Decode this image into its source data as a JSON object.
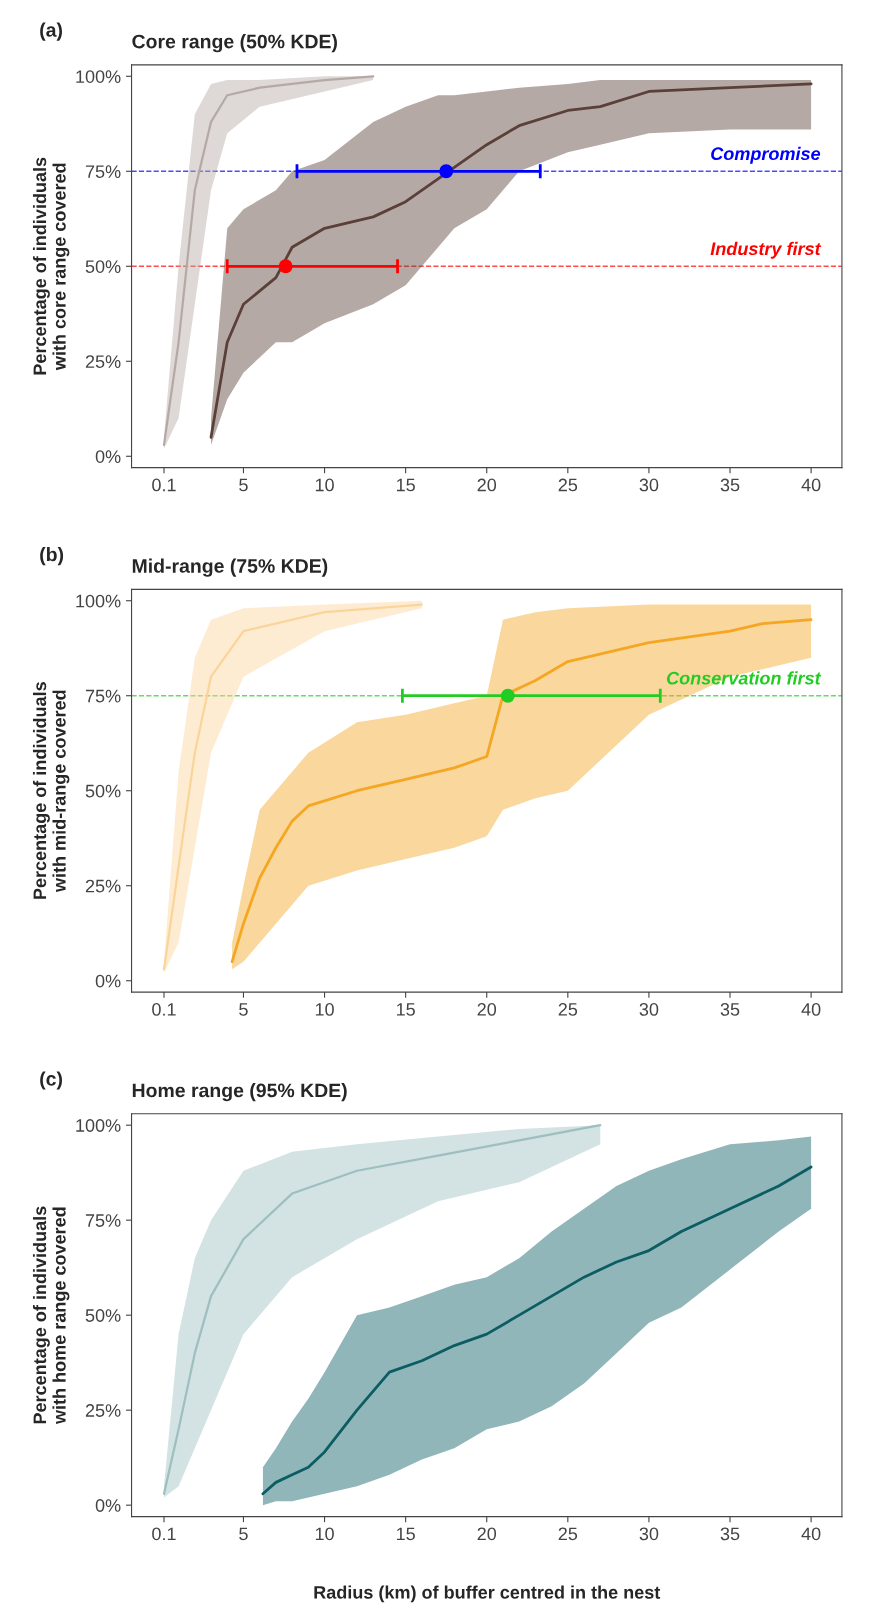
{
  "chart_data": [
    {
      "type": "line",
      "title": "Core range (50% KDE)",
      "annotations": [
        "(a)"
      ],
      "ylabel": "Percentage of individuals\nwith core range covered",
      "xlim": [
        -1.9,
        41.9
      ],
      "xticks": [
        0.1,
        5,
        10,
        15,
        20,
        25,
        30,
        35,
        40
      ],
      "ylim": [
        -3,
        103
      ],
      "yticks": [
        {
          "value": 0,
          "label": "0%"
        },
        {
          "value": 25,
          "label": "25%"
        },
        {
          "value": 50,
          "label": "50%"
        },
        {
          "value": 75,
          "label": "75%"
        },
        {
          "value": 100,
          "label": "100%"
        }
      ],
      "grid": false,
      "legend": false,
      "line_style": "solid",
      "series": [
        {
          "color": "#b5a9a5",
          "x": [
            0.1,
            1,
            2,
            3,
            4,
            6,
            10,
            13
          ],
          "values": [
            3,
            30,
            70,
            88,
            95,
            97,
            99,
            100
          ],
          "lower": [
            2,
            10,
            40,
            70,
            85,
            92,
            96,
            99
          ],
          "upper": [
            5,
            50,
            90,
            98,
            99,
            99,
            100,
            100
          ]
        },
        {
          "color": "#5a4038",
          "x": [
            3,
            4,
            5,
            7,
            8,
            10,
            13,
            15,
            17,
            18,
            20,
            22,
            25,
            27,
            30,
            35,
            40
          ],
          "values": [
            5,
            30,
            40,
            47,
            55,
            60,
            63,
            67,
            73,
            76,
            82,
            87,
            91,
            92,
            96,
            97,
            98
          ],
          "lower": [
            3,
            15,
            22,
            30,
            30,
            35,
            40,
            45,
            55,
            60,
            65,
            75,
            80,
            82,
            85,
            86,
            86
          ],
          "upper": [
            10,
            60,
            65,
            70,
            75,
            78,
            88,
            92,
            95,
            95,
            96,
            97,
            98,
            99,
            99,
            99,
            99
          ]
        },
        {
          "type": "scatter",
          "color": "#0000ff",
          "x": [
            17.5
          ],
          "values": [
            75
          ],
          "xerrors": [
            [
              8.3,
              23.3
            ]
          ]
        },
        {
          "type": "scatter",
          "color": "#ff0000",
          "x": [
            7.6
          ],
          "values": [
            50
          ],
          "xerrors": [
            [
              4,
              14.5
            ]
          ]
        }
      ],
      "ref_lines": [
        {
          "axis": "y",
          "value": 75,
          "label": "Compromise",
          "color": "#0000ff",
          "line_style": "dashed"
        },
        {
          "axis": "y",
          "value": 50,
          "label": "Industry first",
          "color": "#ff0000",
          "line_style": "dashed"
        }
      ]
    },
    {
      "type": "line",
      "title": "Mid-range (75% KDE)",
      "annotations": [
        "(b)"
      ],
      "ylabel": "Percentage of individuals\nwith mid-range covered",
      "xlim": [
        -1.9,
        41.9
      ],
      "xticks": [
        0.1,
        5,
        10,
        15,
        20,
        25,
        30,
        35,
        40
      ],
      "ylim": [
        -3,
        103
      ],
      "yticks": [
        {
          "value": 0,
          "label": "0%"
        },
        {
          "value": 25,
          "label": "25%"
        },
        {
          "value": 50,
          "label": "50%"
        },
        {
          "value": 75,
          "label": "75%"
        },
        {
          "value": 100,
          "label": "100%"
        }
      ],
      "grid": false,
      "legend": false,
      "line_style": "solid",
      "series": [
        {
          "color": "#fbd49a",
          "x": [
            0.1,
            1,
            2,
            3,
            5,
            10,
            16
          ],
          "values": [
            3,
            30,
            60,
            80,
            92,
            97,
            99
          ],
          "lower": [
            2,
            10,
            35,
            60,
            80,
            92,
            98
          ],
          "upper": [
            5,
            55,
            85,
            95,
            98,
            99,
            100
          ]
        },
        {
          "color": "#f5a623",
          "x": [
            4.3,
            5,
            6,
            7,
            8,
            9,
            12,
            15,
            18,
            20,
            21,
            23,
            25,
            30,
            35,
            37,
            40
          ],
          "values": [
            5,
            15,
            27,
            35,
            42,
            46,
            50,
            53,
            56,
            59,
            75,
            79,
            84,
            89,
            92,
            94,
            95
          ],
          "lower": [
            3,
            5,
            10,
            15,
            20,
            25,
            29,
            32,
            35,
            38,
            45,
            48,
            50,
            70,
            80,
            82,
            85
          ],
          "upper": [
            10,
            25,
            45,
            50,
            55,
            60,
            68,
            70,
            73,
            75,
            95,
            97,
            98,
            99,
            99,
            99,
            99
          ]
        },
        {
          "type": "scatter",
          "color": "#22cc22",
          "x": [
            21.3
          ],
          "values": [
            75
          ],
          "xerrors": [
            [
              14.8,
              30.7
            ]
          ]
        }
      ],
      "ref_lines": [
        {
          "axis": "y",
          "value": 75,
          "label": "Conservation first",
          "color": "#22cc22",
          "line_style": "dashed"
        }
      ]
    },
    {
      "type": "line",
      "title": "Home range (95% KDE)",
      "annotations": [
        "(c)"
      ],
      "ylabel": "Percentage of individuals\nwith home range covered",
      "xlabel": "Radius (km) of buffer centred in the nest",
      "xlim": [
        -1.9,
        41.9
      ],
      "xticks": [
        0.1,
        5,
        10,
        15,
        20,
        25,
        30,
        35,
        40
      ],
      "ylim": [
        -3,
        103
      ],
      "yticks": [
        {
          "value": 0,
          "label": "0%"
        },
        {
          "value": 25,
          "label": "25%"
        },
        {
          "value": 50,
          "label": "50%"
        },
        {
          "value": 75,
          "label": "75%"
        },
        {
          "value": 100,
          "label": "100%"
        }
      ],
      "grid": false,
      "legend": false,
      "line_style": "solid",
      "series": [
        {
          "color": "#9dbfbf",
          "x": [
            0.1,
            1,
            2,
            3,
            5,
            8,
            12,
            17,
            22,
            27
          ],
          "values": [
            3,
            20,
            40,
            55,
            70,
            82,
            88,
            92,
            96,
            100
          ],
          "lower": [
            2,
            5,
            15,
            25,
            45,
            60,
            70,
            80,
            85,
            95
          ],
          "upper": [
            5,
            45,
            65,
            75,
            88,
            93,
            95,
            97,
            99,
            100
          ]
        },
        {
          "color": "#0b5d63",
          "x": [
            6.2,
            7,
            8,
            9,
            10,
            12,
            14,
            16,
            18,
            20,
            22,
            24,
            26,
            28,
            30,
            32,
            35,
            38,
            40
          ],
          "values": [
            3,
            6,
            8,
            10,
            14,
            25,
            35,
            38,
            42,
            45,
            50,
            55,
            60,
            64,
            67,
            72,
            78,
            84,
            89
          ],
          "lower": [
            0,
            1,
            1,
            2,
            3,
            5,
            8,
            12,
            15,
            20,
            22,
            26,
            32,
            40,
            48,
            52,
            62,
            72,
            78
          ],
          "upper": [
            10,
            15,
            22,
            28,
            35,
            50,
            52,
            55,
            58,
            60,
            65,
            72,
            78,
            84,
            88,
            91,
            95,
            96,
            97
          ]
        }
      ]
    }
  ]
}
